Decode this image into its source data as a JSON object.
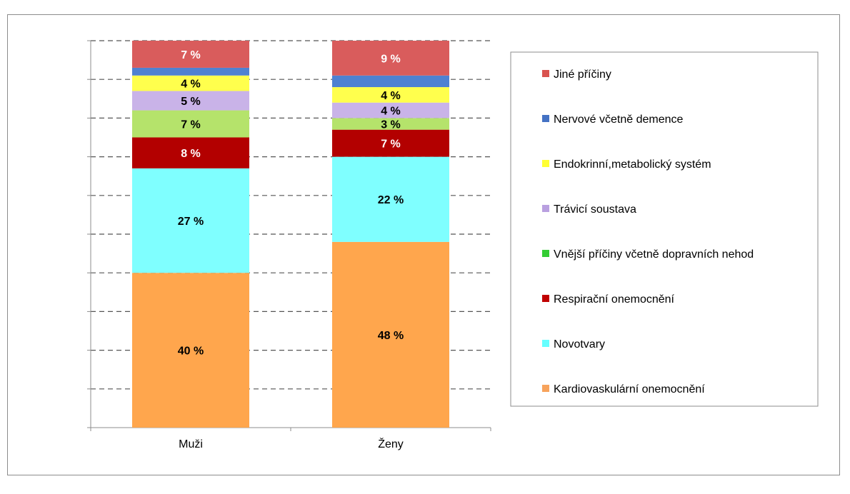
{
  "chart_data": {
    "type": "stacked-bar-100",
    "categories": [
      "Muži",
      "Ženy"
    ],
    "ylim": [
      0,
      100
    ],
    "grid": true,
    "legend_position": "right",
    "series": [
      {
        "name": "Kardiovaskulární onemocnění",
        "color": "#FFA64D",
        "values": [
          40,
          48
        ],
        "labels": [
          "40 %",
          "48 %"
        ],
        "label_color": "#000000"
      },
      {
        "name": "Novotvary",
        "color": "#7FFFFF",
        "values": [
          27,
          22
        ],
        "labels": [
          "27 %",
          "22 %"
        ],
        "label_color": "#000000"
      },
      {
        "name": "Respirační onemocnění",
        "color": "#B30000",
        "values": [
          8,
          7
        ],
        "labels": [
          "8 %",
          "7 %"
        ],
        "label_color": "#FFFFFF"
      },
      {
        "name": "Vnější příčiny včetně dopravních nehod",
        "color": "#B5E36B",
        "values": [
          7,
          3
        ],
        "labels": [
          "7 %",
          "3 %"
        ],
        "label_color": "#000000"
      },
      {
        "name": "Trávicí soustava",
        "color": "#C9B3E8",
        "values": [
          5,
          4
        ],
        "labels": [
          "5 %",
          "4 %"
        ],
        "label_color": "#000000"
      },
      {
        "name": "Endokrinní,metabolický systém",
        "color": "#FFFF4D",
        "values": [
          4,
          4
        ],
        "labels": [
          "4 %",
          "4 %"
        ],
        "label_color": "#000000"
      },
      {
        "name": "Nervové včetně demence",
        "color": "#4F81D1",
        "values": [
          2,
          3
        ],
        "labels": [
          "",
          ""
        ],
        "label_color": "#FFFFFF"
      },
      {
        "name": "Jiné příčiny",
        "color": "#D95C5C",
        "values": [
          7,
          9
        ],
        "labels": [
          "7 %",
          "9 %"
        ],
        "label_color": "#FFFFFF"
      }
    ],
    "legend_colors": {
      "Kardiovaskulární onemocnění": "#F7A35C",
      "Novotvary": "#66FFFF",
      "Respirační onemocnění": "#C00000",
      "Vnější příčiny včetně dopravních nehod": "#33CC33",
      "Trávicí soustava": "#B9A0E0",
      "Endokrinní,metabolický systém": "#FFFF33",
      "Nervové včetně demence": "#4472C4",
      "Jiné příčiny": "#D9534F"
    },
    "legend_order": [
      "Jiné příčiny",
      "Nervové včetně demence",
      "Endokrinní,metabolický systém",
      "Trávicí soustava",
      "Vnější příčiny včetně dopravních nehod",
      "Respirační onemocnění",
      "Novotvary",
      "Kardiovaskulární onemocnění"
    ]
  }
}
